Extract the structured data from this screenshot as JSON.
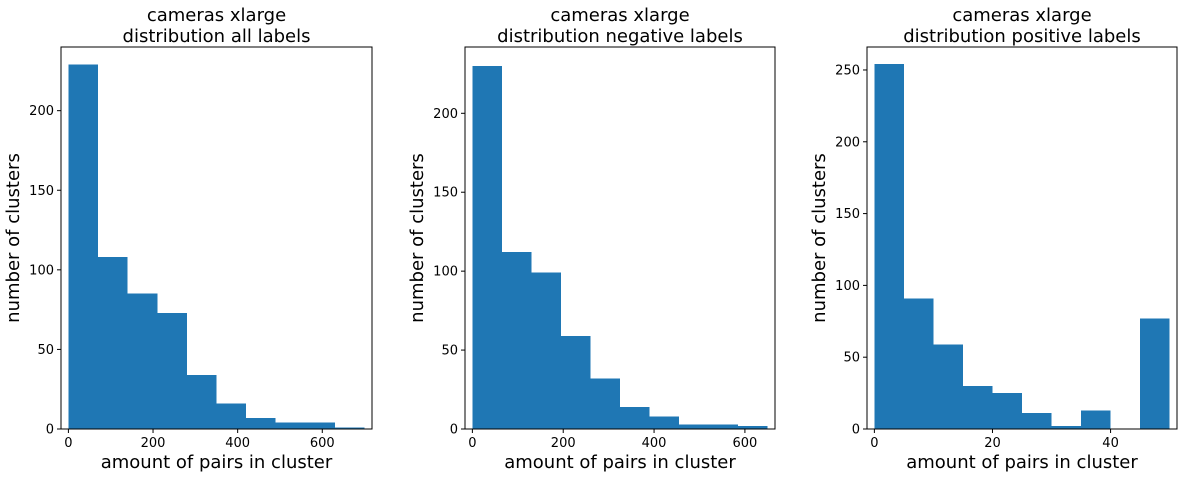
{
  "chart_data": [
    {
      "type": "bar",
      "title_line1": "cameras xlarge",
      "title_line2": "distribution all labels",
      "xlabel": "amount of pairs in cluster",
      "ylabel": "number of clusters",
      "bin_edges": [
        0,
        70,
        140,
        210,
        280,
        350,
        420,
        490,
        560,
        630,
        700
      ],
      "values": [
        229,
        108,
        85,
        73,
        34,
        16,
        7,
        4,
        4,
        1
      ],
      "xlim": [
        -17.5,
        717.5
      ],
      "ylim": [
        0,
        240
      ],
      "xticks": [
        0,
        200,
        400,
        600
      ],
      "yticks": [
        0,
        50,
        100,
        150,
        200
      ],
      "bar_color": "#1f77b4"
    },
    {
      "type": "bar",
      "title_line1": "cameras xlarge",
      "title_line2": "distribution negative labels",
      "xlabel": "amount of pairs in cluster",
      "ylabel": "number of clusters",
      "bin_edges": [
        0,
        65,
        130,
        195,
        260,
        325,
        390,
        455,
        520,
        585,
        650
      ],
      "values": [
        230,
        112,
        99,
        59,
        32,
        14,
        8,
        3,
        3,
        2
      ],
      "xlim": [
        -16.25,
        666.25
      ],
      "ylim": [
        0,
        242
      ],
      "xticks": [
        0,
        200,
        400,
        600
      ],
      "yticks": [
        0,
        50,
        100,
        150,
        200
      ],
      "bar_color": "#1f77b4"
    },
    {
      "type": "bar",
      "title_line1": "cameras xlarge",
      "title_line2": "distribution positive labels",
      "xlabel": "amount of pairs in cluster",
      "ylabel": "number of clusters",
      "bin_edges": [
        0,
        5,
        10,
        15,
        20,
        25,
        30,
        35,
        40,
        45,
        50
      ],
      "values": [
        254,
        91,
        59,
        30,
        25,
        11,
        2,
        13,
        0,
        77
      ],
      "xlim": [
        -1.25,
        51.25
      ],
      "ylim": [
        0,
        266
      ],
      "xticks": [
        0,
        20,
        40
      ],
      "yticks": [
        0,
        50,
        100,
        150,
        200,
        250
      ],
      "bar_color": "#1f77b4"
    }
  ]
}
